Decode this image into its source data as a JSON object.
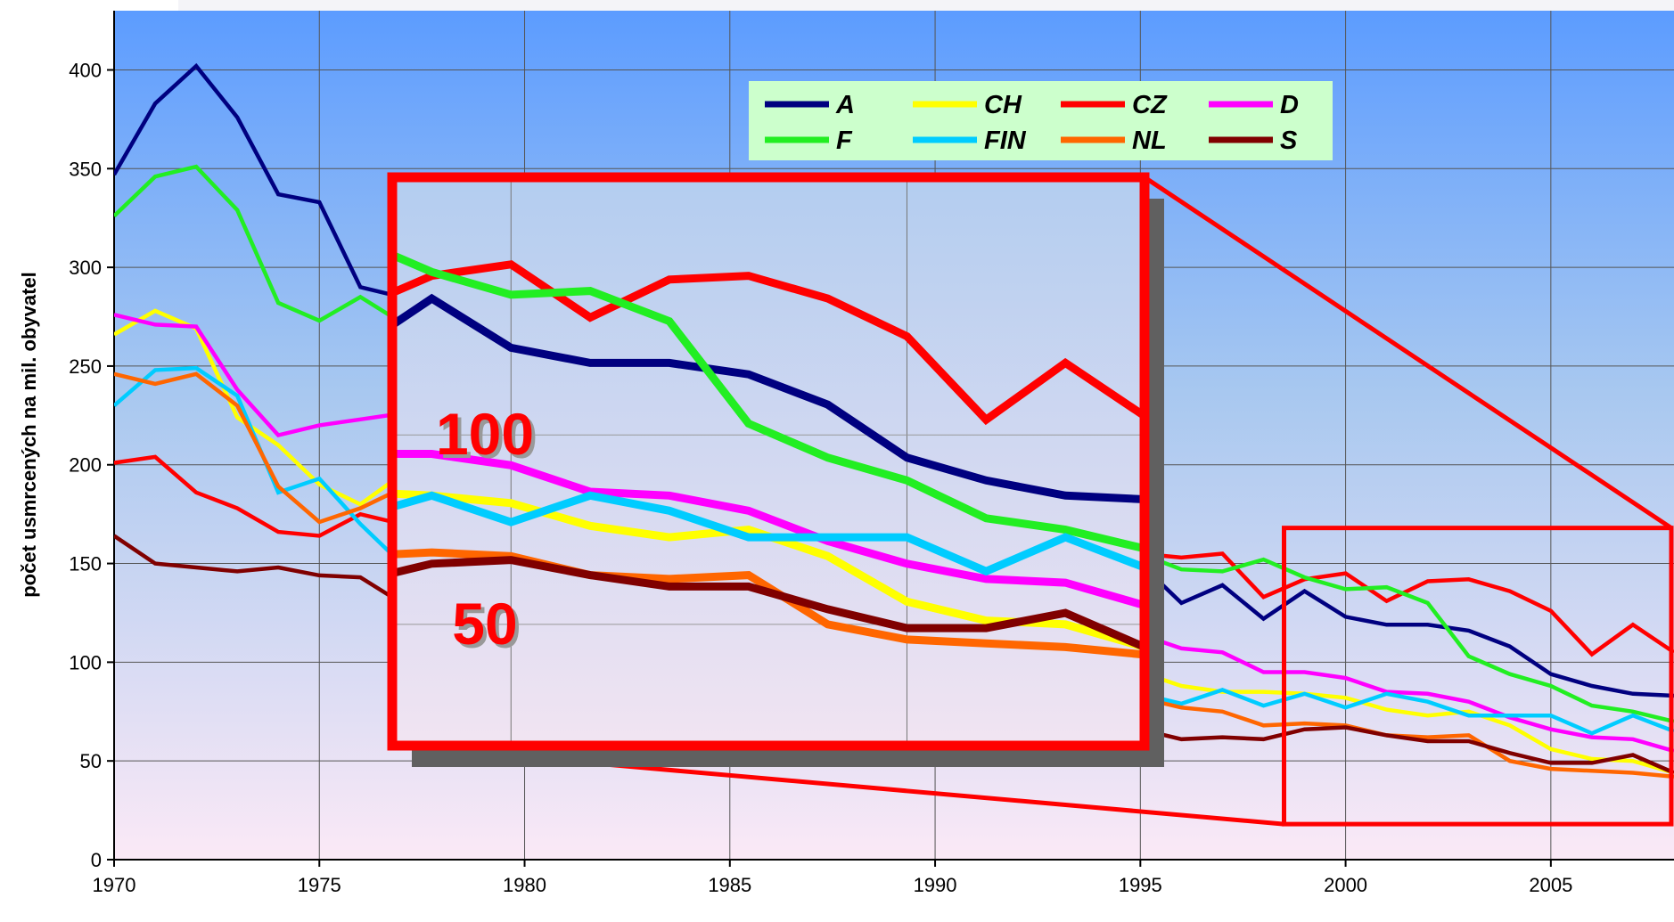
{
  "chart_data": {
    "type": "line",
    "y_label": "počet usmrcených na mil. obyvatel",
    "x": [
      1970,
      1971,
      1972,
      1973,
      1974,
      1975,
      1976,
      1977,
      1978,
      1979,
      1980,
      1981,
      1982,
      1983,
      1984,
      1985,
      1986,
      1987,
      1988,
      1989,
      1990,
      1991,
      1992,
      1993,
      1994,
      1995,
      1996,
      1997,
      1998,
      1999,
      2000,
      2001,
      2002,
      2003,
      2004,
      2005,
      2006,
      2007,
      2008
    ],
    "xlim": [
      1970,
      2008
    ],
    "xticks": [
      1970,
      1975,
      1980,
      1985,
      1990,
      1995,
      2000,
      2005
    ],
    "ylim": [
      0,
      430
    ],
    "yticks": [
      0,
      50,
      100,
      150,
      200,
      250,
      300,
      350,
      400
    ],
    "grid": true,
    "legend": "top",
    "series": [
      {
        "name": "A",
        "color": "#000080",
        "values": [
          347,
          383,
          402,
          376,
          337,
          333,
          290,
          285,
          270,
          260,
          250,
          240,
          235,
          230,
          220,
          210,
          200,
          190,
          180,
          175,
          170,
          165,
          160,
          157,
          154,
          150,
          130,
          139,
          122,
          136,
          123,
          119,
          119,
          116,
          108,
          94,
          88,
          84,
          83
        ]
      },
      {
        "name": "CH",
        "color": "#ffff00",
        "values": [
          266,
          278,
          269,
          224,
          210,
          190,
          180,
          195,
          180,
          170,
          160,
          155,
          150,
          145,
          140,
          135,
          130,
          125,
          120,
          115,
          110,
          105,
          100,
          98,
          96,
          95,
          88,
          85,
          85,
          84,
          82,
          76,
          73,
          75,
          68,
          56,
          51,
          50,
          44
        ]
      },
      {
        "name": "CZ",
        "color": "#ff0000",
        "values": [
          201,
          204,
          186,
          178,
          166,
          164,
          175,
          170,
          160,
          160,
          158,
          150,
          145,
          140,
          130,
          128,
          130,
          129,
          128,
          125,
          138,
          135,
          130,
          128,
          140,
          155,
          153,
          155,
          133,
          142,
          145,
          131,
          141,
          142,
          136,
          126,
          104,
          119,
          105
        ]
      },
      {
        "name": "D",
        "color": "#ff00ff",
        "values": [
          276,
          271,
          270,
          238,
          215,
          220,
          223,
          226,
          215,
          205,
          195,
          190,
          185,
          180,
          175,
          170,
          165,
          160,
          155,
          150,
          145,
          140,
          135,
          128,
          120,
          114,
          107,
          105,
          95,
          95,
          92,
          85,
          84,
          80,
          72,
          66,
          62,
          61,
          55
        ]
      },
      {
        "name": "F",
        "color": "#22ee22",
        "values": [
          326,
          346,
          351,
          329,
          282,
          273,
          285,
          272,
          265,
          255,
          250,
          245,
          240,
          230,
          220,
          210,
          200,
          190,
          180,
          172,
          165,
          160,
          158,
          156,
          154,
          155,
          147,
          146,
          152,
          143,
          137,
          138,
          130,
          103,
          94,
          88,
          78,
          75,
          70
        ]
      },
      {
        "name": "FIN",
        "color": "#00ccff",
        "values": [
          230,
          248,
          249,
          235,
          186,
          193,
          170,
          150,
          140,
          130,
          125,
          120,
          115,
          112,
          110,
          108,
          105,
          103,
          100,
          98,
          95,
          92,
          90,
          88,
          86,
          84,
          79,
          86,
          78,
          84,
          77,
          84,
          80,
          73,
          73,
          73,
          64,
          73,
          65
        ]
      },
      {
        "name": "NL",
        "color": "#ff6600",
        "values": [
          246,
          241,
          246,
          230,
          189,
          171,
          178,
          188,
          140,
          135,
          130,
          125,
          120,
          115,
          110,
          105,
          100,
          98,
          96,
          94,
          92,
          90,
          88,
          86,
          84,
          82,
          77,
          75,
          68,
          69,
          68,
          63,
          62,
          63,
          50,
          46,
          45,
          44,
          42
        ]
      },
      {
        "name": "S",
        "color": "#800000",
        "values": [
          164,
          150,
          148,
          146,
          148,
          144,
          143,
          130,
          110,
          105,
          100,
          98,
          96,
          94,
          92,
          90,
          88,
          86,
          84,
          82,
          80,
          78,
          76,
          74,
          70,
          66,
          61,
          62,
          61,
          66,
          67,
          63,
          60,
          60,
          54,
          49,
          49,
          53,
          44
        ]
      }
    ],
    "inset": {
      "xlim": [
        1998.5,
        2008
      ],
      "ylim": [
        18,
        168
      ],
      "yticks": [
        50,
        100
      ],
      "color": "#ff0000"
    }
  }
}
